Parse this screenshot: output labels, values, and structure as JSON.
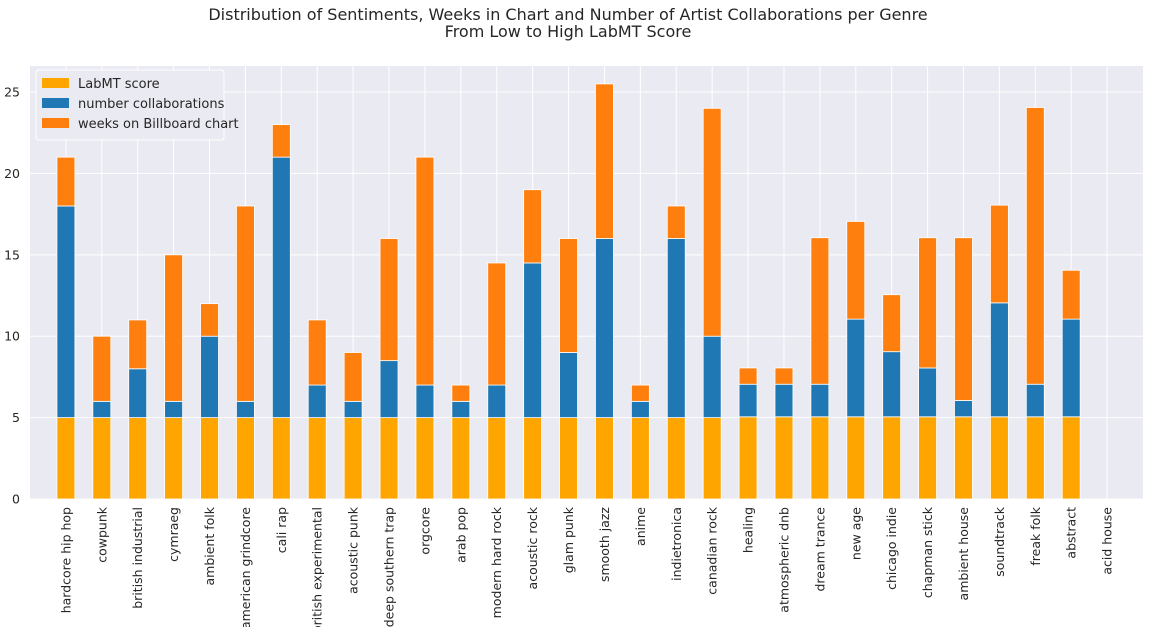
{
  "chart_data": {
    "type": "bar",
    "stacked": true,
    "title": "Distribution of Sentiments, Weeks in Chart and Number of Artist Collaborations per Genre",
    "subtitle": "From Low to High LabMT Score",
    "xlabel": "",
    "ylabel": "",
    "ylim": [
      0,
      26.6
    ],
    "yticks": [
      0,
      5,
      10,
      15,
      20,
      25
    ],
    "grid": true,
    "legend_position": "top-left",
    "categories": [
      "hardcore hip hop",
      "cowpunk",
      "british industrial",
      "cymraeg",
      "ambient folk",
      "american grindcore",
      "cali rap",
      "british experimental",
      "acoustic punk",
      "deep southern trap",
      "orgcore",
      "arab pop",
      "modern hard rock",
      "acoustic rock",
      "glam punk",
      "smooth jazz",
      "anime",
      "indietronica",
      "canadian rock",
      "healing",
      "atmospheric dnb",
      "dream trance",
      "new age",
      "chicago indie",
      "chapman stick",
      "ambient house",
      "soundtrack",
      "freak folk",
      "abstract",
      "acid house"
    ],
    "series": [
      {
        "name": "LabMT score",
        "color": "#FFA500",
        "values": [
          5.0,
          5.0,
          5.0,
          5.0,
          5.0,
          5.0,
          5.0,
          5.0,
          5.0,
          5.0,
          5.0,
          5.0,
          5.0,
          5.0,
          5.0,
          5.0,
          5.0,
          5.0,
          5.0,
          5.05,
          5.05,
          5.05,
          5.05,
          5.05,
          5.05,
          5.05,
          5.05,
          5.05,
          5.05,
          0
        ]
      },
      {
        "name": "number collaborations",
        "color": "#1F77B4",
        "values": [
          13,
          1,
          3,
          1,
          5,
          1,
          16,
          2,
          1,
          3.5,
          2,
          1,
          2,
          9.5,
          4,
          11,
          1,
          11,
          5,
          2,
          2,
          2,
          6,
          4,
          3,
          1,
          7,
          2,
          6,
          0
        ]
      },
      {
        "name": "weeks on Billboard chart",
        "color": "#FF7F0E",
        "values": [
          3,
          4,
          3,
          9,
          2,
          12,
          2,
          4,
          3,
          7.5,
          14,
          1,
          7.5,
          4.5,
          7,
          9.5,
          1,
          2,
          14,
          1,
          1,
          9,
          6,
          3.5,
          8,
          10,
          6,
          17,
          3,
          0
        ]
      }
    ]
  }
}
